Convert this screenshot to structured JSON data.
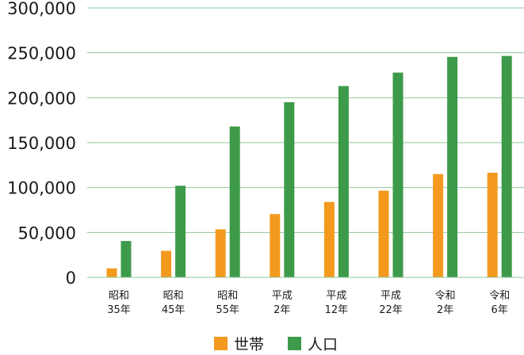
{
  "chart_data": {
    "type": "bar",
    "categories": [
      [
        "昭和",
        "35年"
      ],
      [
        "昭和",
        "45年"
      ],
      [
        "昭和",
        "55年"
      ],
      [
        "平成",
        "2年"
      ],
      [
        "平成",
        "12年"
      ],
      [
        "平成",
        "22年"
      ],
      [
        "令和",
        "2年"
      ],
      [
        "令和",
        "6年"
      ]
    ],
    "series": [
      {
        "name": "世帯",
        "color": "#f39a1e",
        "values": [
          10000,
          29500,
          53500,
          70500,
          84000,
          96500,
          115000,
          116500
        ]
      },
      {
        "name": "人口",
        "color": "#3d9a4a",
        "values": [
          40500,
          102000,
          168000,
          195000,
          213000,
          228000,
          245500,
          246500
        ]
      }
    ],
    "ylim": [
      0,
      300000
    ],
    "yticks": [
      0,
      50000,
      100000,
      150000,
      200000,
      250000,
      300000
    ],
    "ytick_labels": [
      "0",
      "50,000",
      "100,000",
      "150,000",
      "200,000",
      "250,000",
      "300,000"
    ],
    "grid": true,
    "grid_color": "#8cc79a",
    "legend_position": "bottom-center",
    "title": "",
    "xlabel": "",
    "ylabel": ""
  }
}
